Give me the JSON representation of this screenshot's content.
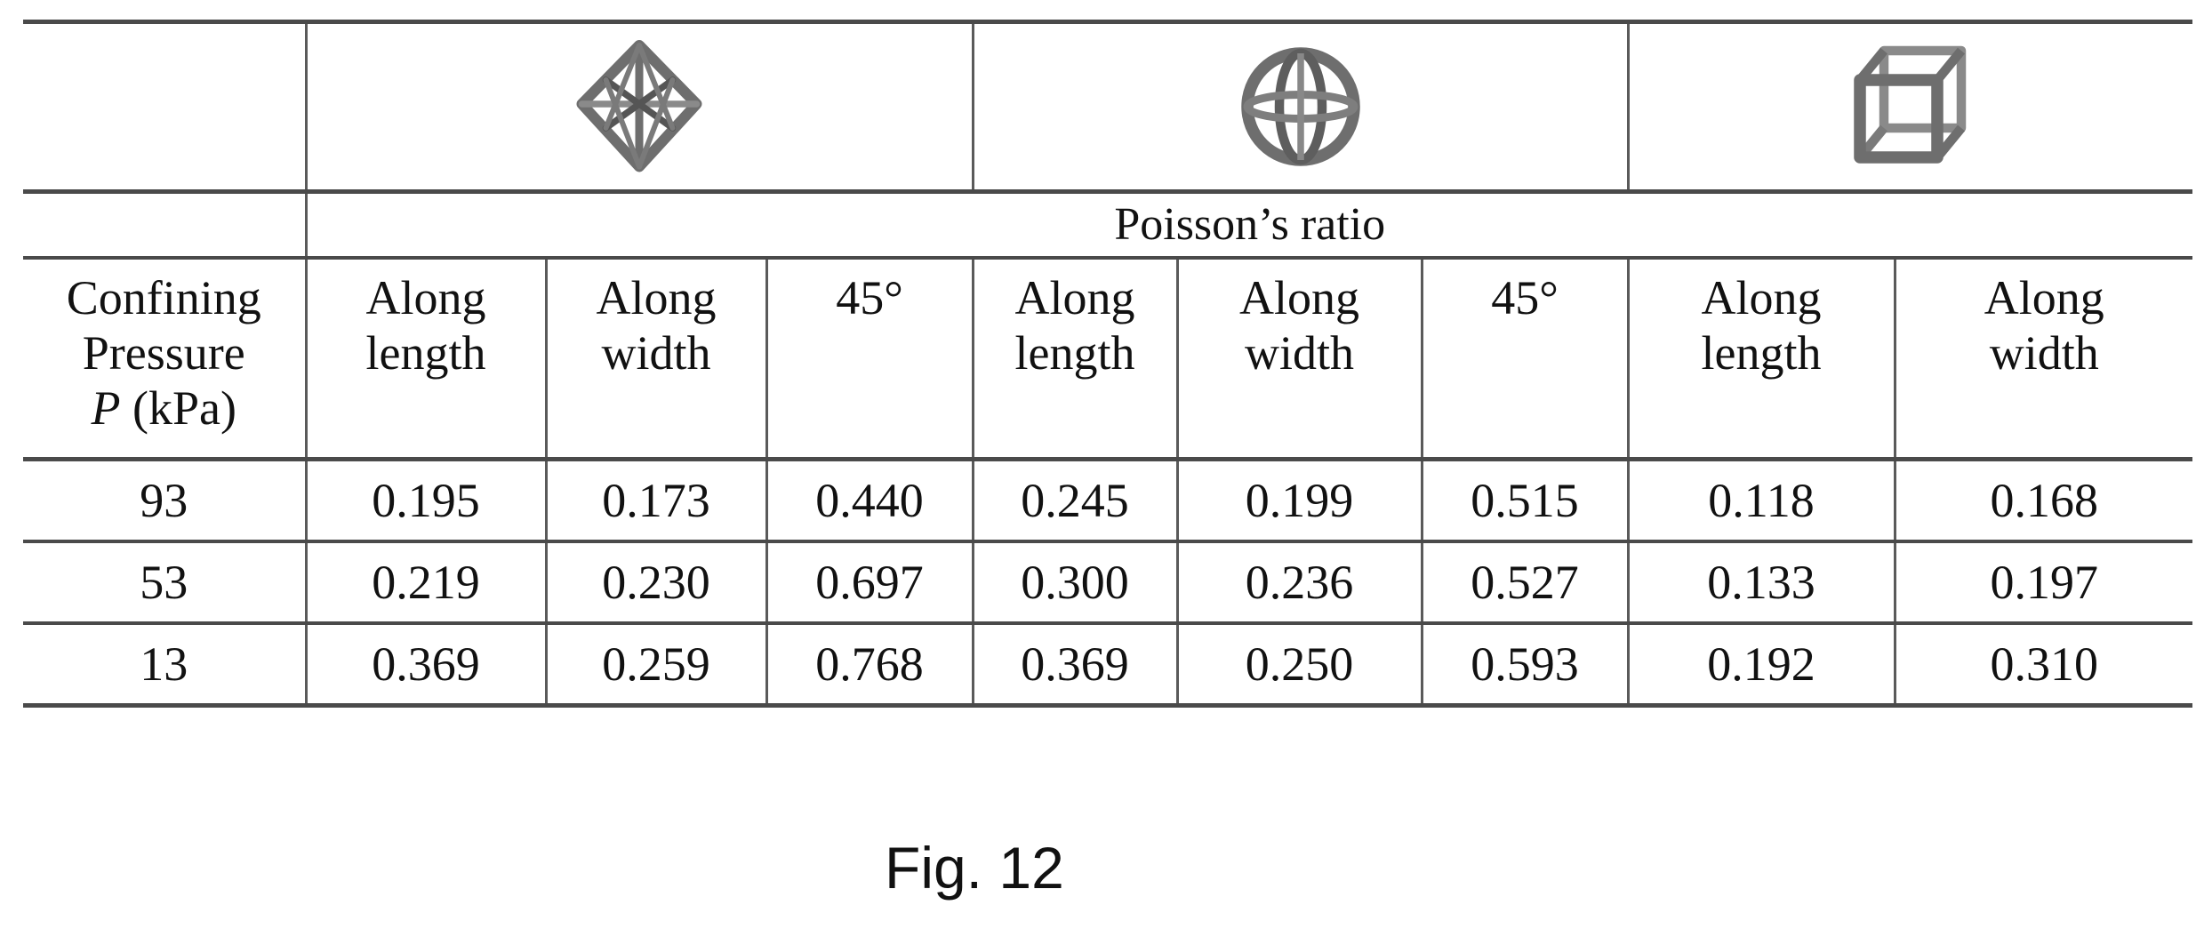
{
  "table": {
    "group_header": "Poisson’s ratio",
    "first_column_header": {
      "line1": "Confining",
      "line2": "Pressure",
      "symbol": "P",
      "unit": " (kPa)"
    },
    "lattice_icons": [
      {
        "icon": "octahedron-lattice-icon"
      },
      {
        "icon": "sphere-lattice-icon"
      },
      {
        "icon": "cube-lattice-icon"
      }
    ],
    "columns": [
      {
        "line1": "Along",
        "line2": "length"
      },
      {
        "line1": "Along",
        "line2": "width"
      },
      {
        "line1": "45°",
        "line2": ""
      },
      {
        "line1": "Along",
        "line2": "length"
      },
      {
        "line1": "Along",
        "line2": "width"
      },
      {
        "line1": "45°",
        "line2": ""
      },
      {
        "line1": "Along",
        "line2": "length"
      },
      {
        "line1": "Along",
        "line2": "width"
      }
    ],
    "rows": [
      {
        "pressure": "93",
        "values": [
          "0.195",
          "0.173",
          "0.440",
          "0.245",
          "0.199",
          "0.515",
          "0.118",
          "0.168"
        ]
      },
      {
        "pressure": "53",
        "values": [
          "0.219",
          "0.230",
          "0.697",
          "0.300",
          "0.236",
          "0.527",
          "0.133",
          "0.197"
        ]
      },
      {
        "pressure": "13",
        "values": [
          "0.369",
          "0.259",
          "0.768",
          "0.369",
          "0.250",
          "0.593",
          "0.192",
          "0.310"
        ]
      }
    ]
  },
  "caption": "Fig. 12",
  "colors": {
    "rule": "#4a4a4a",
    "text": "#111111",
    "lattice": "#6e6e6e"
  }
}
